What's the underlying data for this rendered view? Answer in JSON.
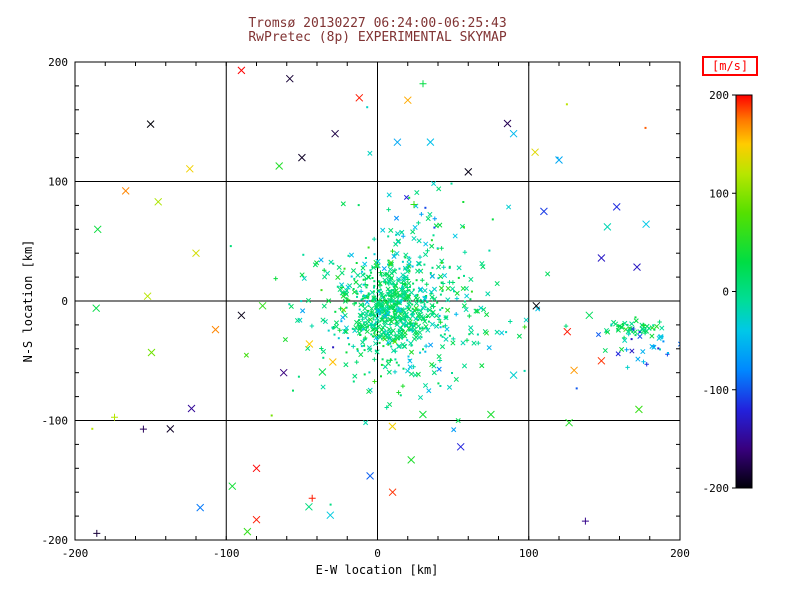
{
  "chart_data": {
    "type": "scatter",
    "title": "Tromsø 20130227 06:24:00-06:25:43",
    "subtitle": "RwPretec (8p) EXPERIMENTAL SKYMAP",
    "title_color": "#803333",
    "xlabel": "E-W location [km]",
    "ylabel": "N-S location [km]",
    "xlim": [
      -200,
      200
    ],
    "ylim": [
      -200,
      200
    ],
    "xticks": [
      -200,
      -100,
      0,
      100,
      200
    ],
    "yticks": [
      -200,
      -100,
      0,
      100,
      200
    ],
    "grid_lines": [
      -100,
      0,
      100
    ],
    "background": "#ffffff",
    "axis_color": "#000000",
    "colorbar": {
      "label": "[m/s]",
      "label_color": "#ff0000",
      "min": -200,
      "max": 200,
      "ticks": [
        200,
        100,
        0,
        -100,
        -200
      ],
      "stops": [
        [
          -200,
          "#000008"
        ],
        [
          -160,
          "#38007e"
        ],
        [
          -120,
          "#2222dd"
        ],
        [
          -80,
          "#0088ff"
        ],
        [
          -40,
          "#00c8e8"
        ],
        [
          -10,
          "#00dd99"
        ],
        [
          30,
          "#00dd44"
        ],
        [
          80,
          "#55e000"
        ],
        [
          120,
          "#b8e600"
        ],
        [
          150,
          "#ffcc00"
        ],
        [
          175,
          "#ff7700"
        ],
        [
          200,
          "#ff0000"
        ]
      ]
    },
    "clusters": [
      {
        "name": "core",
        "n": 430,
        "cx": 8,
        "cy": -8,
        "sx": 15,
        "sy": 17,
        "vmean": 8,
        "vstd": 18
      },
      {
        "name": "halo",
        "n": 320,
        "cx": 14,
        "cy": -8,
        "sx": 36,
        "sy": 30,
        "vmean": 0,
        "vstd": 30
      },
      {
        "name": "upper-scatter",
        "n": 60,
        "cx": 30,
        "cy": 45,
        "sx": 22,
        "sy": 28,
        "vmean": -10,
        "vstd": 40
      },
      {
        "name": "lower-scatter",
        "n": 50,
        "cx": 15,
        "cy": -55,
        "sx": 30,
        "sy": 22,
        "vmean": 0,
        "vstd": 30
      },
      {
        "name": "east-blob",
        "n": 55,
        "cx": 171,
        "cy": -23,
        "sx": 9,
        "sy": 5,
        "vmean": 10,
        "vstd": 20
      },
      {
        "name": "east-spread",
        "n": 32,
        "cx": 183,
        "cy": -38,
        "sx": 13,
        "sy": 9,
        "vmean": -55,
        "vstd": 45
      },
      {
        "name": "sparse-outliers",
        "n": 42,
        "uniform": true,
        "x0": -195,
        "x1": 195,
        "y0": -195,
        "y1": 195,
        "vmin": -200,
        "vmax": 200
      }
    ],
    "points": [
      [
        -90,
        193,
        200
      ],
      [
        -150,
        148,
        -200
      ],
      [
        -12,
        170,
        195
      ],
      [
        20,
        168,
        160
      ],
      [
        90,
        140,
        -50
      ],
      [
        35,
        133,
        -45
      ],
      [
        -28,
        140,
        -180
      ],
      [
        -50,
        120,
        -190
      ],
      [
        -65,
        113,
        50
      ],
      [
        60,
        108,
        -195
      ],
      [
        120,
        118,
        -60
      ],
      [
        -145,
        83,
        115
      ],
      [
        -185,
        60,
        35
      ],
      [
        110,
        75,
        -110
      ],
      [
        152,
        62,
        -20
      ],
      [
        148,
        36,
        -130
      ],
      [
        -120,
        40,
        130
      ],
      [
        -152,
        4,
        120
      ],
      [
        -186,
        -6,
        30
      ],
      [
        -90,
        -12,
        -195
      ],
      [
        -76,
        -4,
        60
      ],
      [
        105,
        -4,
        -200
      ],
      [
        140,
        -12,
        20
      ],
      [
        -45,
        -36,
        150
      ],
      [
        -62,
        -60,
        -160
      ],
      [
        90,
        -62,
        -30
      ],
      [
        130,
        -58,
        165
      ],
      [
        148,
        -50,
        190
      ],
      [
        30,
        -95,
        40
      ],
      [
        75,
        -95,
        45
      ],
      [
        55,
        -122,
        -120
      ],
      [
        -123,
        -90,
        -150
      ],
      [
        -137,
        -107,
        -190
      ],
      [
        -80,
        -140,
        200
      ],
      [
        -96,
        -155,
        40
      ],
      [
        10,
        -160,
        190
      ],
      [
        -80,
        -183,
        195
      ],
      [
        -86,
        -193,
        60
      ],
      [
        -58,
        186,
        -185
      ]
    ]
  }
}
